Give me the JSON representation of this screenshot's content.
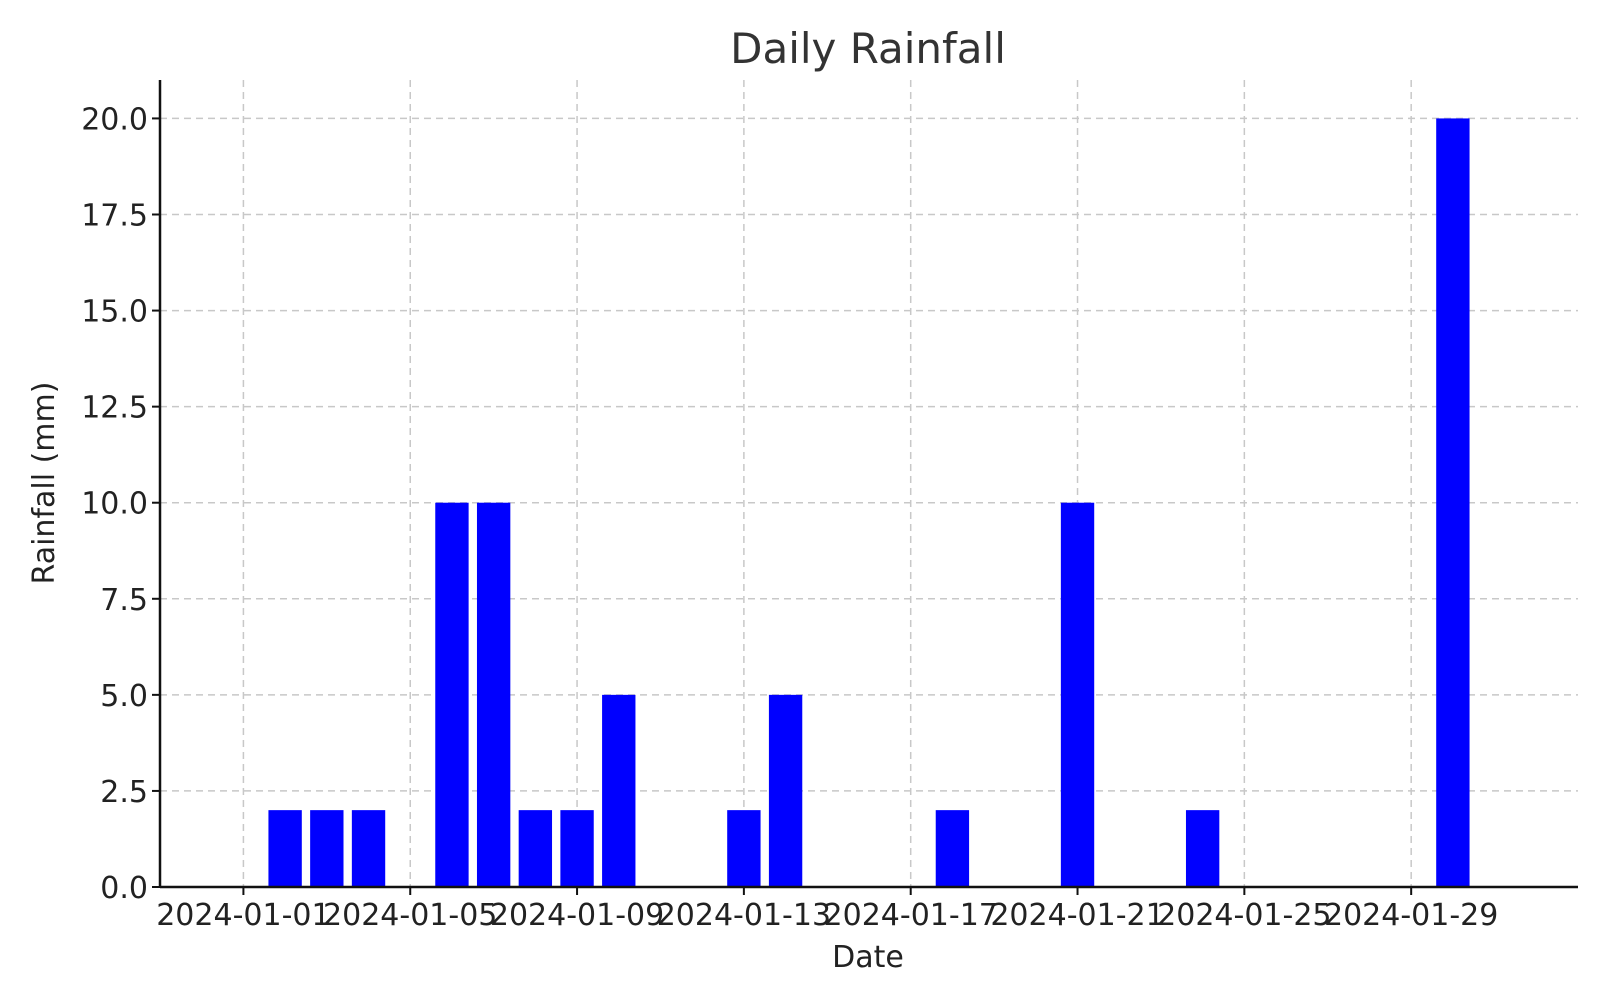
{
  "chart_data": {
    "type": "bar",
    "title": "Daily Rainfall",
    "xlabel": "Date",
    "ylabel": "Rainfall (mm)",
    "x_axis_type": "date",
    "xlim": [
      "2023-12-30",
      "2024-02-02"
    ],
    "ylim": [
      0,
      21
    ],
    "yticks": [
      0.0,
      2.5,
      5.0,
      7.5,
      10.0,
      12.5,
      15.0,
      17.5,
      20.0
    ],
    "ytick_labels": [
      "0.0",
      "2.5",
      "5.0",
      "7.5",
      "10.0",
      "12.5",
      "15.0",
      "17.5",
      "20.0"
    ],
    "xticks": [
      "2024-01-01",
      "2024-01-05",
      "2024-01-09",
      "2024-01-13",
      "2024-01-17",
      "2024-01-21",
      "2024-01-25",
      "2024-01-29"
    ],
    "xtick_labels": [
      "2024-01-01",
      "2024-01-05",
      "2024-01-09",
      "2024-01-13",
      "2024-01-17",
      "2024-01-21",
      "2024-01-25",
      "2024-01-29"
    ],
    "grid": true,
    "bar_color": "#0000ff",
    "dates": [
      "2024-01-02",
      "2024-01-03",
      "2024-01-04",
      "2024-01-06",
      "2024-01-07",
      "2024-01-08",
      "2024-01-09",
      "2024-01-10",
      "2024-01-13",
      "2024-01-14",
      "2024-01-18",
      "2024-01-21",
      "2024-01-24",
      "2024-01-30"
    ],
    "values": [
      2,
      2,
      2,
      10,
      10,
      2,
      2,
      5,
      2,
      5,
      2,
      10,
      2,
      20
    ]
  }
}
